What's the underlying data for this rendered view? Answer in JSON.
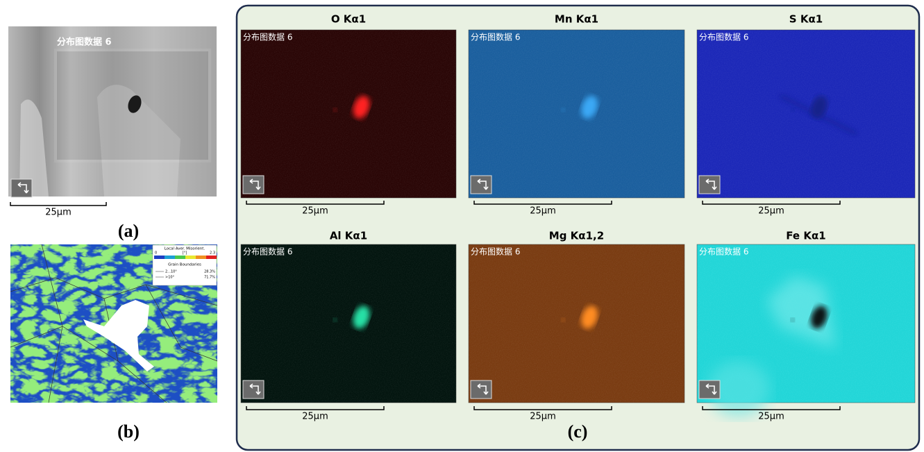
{
  "panel_a": {
    "overlay_label": "分布图数据 6",
    "scale_bar": "25μm",
    "caption": "(a)"
  },
  "panel_b": {
    "legend": {
      "title": "Local Aver. Misorient.",
      "min": "0",
      "unit": "[°]",
      "max": "2.3",
      "boundaries_title": "Grain Boundaries",
      "rows": [
        [
          "2...10°",
          "28.3%"
        ],
        [
          ">10°",
          "71.7%"
        ]
      ]
    },
    "caption": "(b)"
  },
  "panel_c": {
    "maps": [
      {
        "title": "O Kα1",
        "overlay_label": "分布图数据 6",
        "scale_bar": "25μm"
      },
      {
        "title": "Mn Kα1",
        "overlay_label": "分布图数据 6",
        "scale_bar": "25μm"
      },
      {
        "title": "S Kα1",
        "overlay_label": "分布图数据 6",
        "scale_bar": "25μm"
      },
      {
        "title": "Al Kα1",
        "overlay_label": "分布图数据 6",
        "scale_bar": "25μm"
      },
      {
        "title": "Mg Kα1,2",
        "overlay_label": "分布图数据 6",
        "scale_bar": "25μm"
      },
      {
        "title": "Fe Kα1",
        "overlay_label": "分布图数据 6",
        "scale_bar": "25μm"
      }
    ],
    "caption": "(c)"
  }
}
